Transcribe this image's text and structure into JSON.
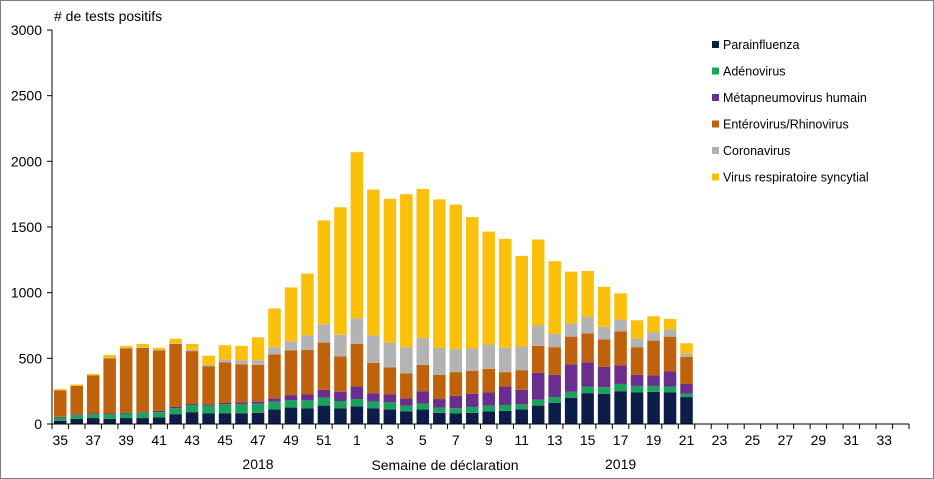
{
  "chart_data": {
    "type": "bar",
    "stacked": true,
    "ylabel": "# de tests positifs",
    "xlabel": "Semaine de déclaration",
    "ylim": [
      0,
      3000
    ],
    "yticks": [
      0,
      500,
      1000,
      1500,
      2000,
      2500,
      3000
    ],
    "year_labels": [
      {
        "label": "2018",
        "under_category": "47"
      },
      {
        "label": "2019",
        "under_category": "17"
      }
    ],
    "categories": [
      "35",
      "36",
      "37",
      "38",
      "39",
      "40",
      "41",
      "42",
      "43",
      "44",
      "45",
      "46",
      "47",
      "48",
      "49",
      "50",
      "51",
      "52",
      "1",
      "2",
      "3",
      "4",
      "5",
      "6",
      "7",
      "8",
      "9",
      "10",
      "11",
      "12",
      "13",
      "14",
      "15",
      "16",
      "17",
      "18",
      "19",
      "20",
      "21",
      "22",
      "23",
      "24",
      "25",
      "26",
      "27",
      "28",
      "29",
      "30",
      "31",
      "32",
      "33",
      "34"
    ],
    "tick_labels": [
      "35",
      "37",
      "39",
      "41",
      "43",
      "45",
      "47",
      "49",
      "51",
      "1",
      "3",
      "5",
      "7",
      "9",
      "11",
      "13",
      "15",
      "17",
      "19",
      "21",
      "23",
      "25",
      "27",
      "29",
      "31",
      "33"
    ],
    "legend_position": "top-right",
    "grid": false,
    "series": [
      {
        "name": "Parainfluenza",
        "color": "#0d1d4a",
        "values": [
          25,
          40,
          45,
          40,
          45,
          45,
          50,
          75,
          90,
          80,
          80,
          80,
          85,
          110,
          125,
          120,
          140,
          120,
          135,
          120,
          110,
          95,
          110,
          85,
          80,
          85,
          95,
          100,
          110,
          140,
          160,
          200,
          235,
          230,
          250,
          240,
          245,
          240,
          205,
          0,
          0,
          0,
          0,
          0,
          0,
          0,
          0,
          0,
          0,
          0,
          0,
          0
        ]
      },
      {
        "name": "Adénovirus",
        "color": "#1aa35b",
        "values": [
          25,
          30,
          30,
          35,
          35,
          40,
          40,
          45,
          55,
          60,
          70,
          70,
          70,
          60,
          55,
          60,
          60,
          55,
          55,
          50,
          55,
          45,
          45,
          40,
          40,
          45,
          45,
          45,
          40,
          45,
          45,
          45,
          50,
          50,
          55,
          50,
          45,
          45,
          25,
          0,
          0,
          0,
          0,
          0,
          0,
          0,
          0,
          0,
          0,
          0,
          0,
          0
        ]
      },
      {
        "name": "Métapneumovirus humain",
        "color": "#6a2e8f",
        "values": [
          5,
          5,
          5,
          5,
          5,
          5,
          10,
          10,
          10,
          10,
          10,
          15,
          15,
          25,
          40,
          45,
          60,
          70,
          95,
          65,
          60,
          55,
          95,
          65,
          95,
          100,
          100,
          140,
          110,
          205,
          170,
          210,
          185,
          155,
          140,
          85,
          80,
          115,
          75,
          0,
          0,
          0,
          0,
          0,
          0,
          0,
          0,
          0,
          0,
          0,
          0,
          0
        ]
      },
      {
        "name": "Entérovirus/Rhinovirus",
        "color": "#c0620c",
        "values": [
          200,
          215,
          290,
          420,
          490,
          490,
          460,
          480,
          400,
          290,
          310,
          290,
          280,
          335,
          340,
          340,
          360,
          270,
          325,
          230,
          205,
          190,
          200,
          185,
          180,
          175,
          180,
          110,
          150,
          205,
          210,
          210,
          220,
          210,
          260,
          210,
          265,
          265,
          205,
          0,
          0,
          0,
          0,
          0,
          0,
          0,
          0,
          0,
          0,
          0,
          0,
          0
        ]
      },
      {
        "name": "Coronavirus",
        "color": "#b3b3b3",
        "values": [
          0,
          0,
          0,
          5,
          5,
          5,
          5,
          5,
          10,
          10,
          20,
          30,
          35,
          55,
          70,
          110,
          140,
          165,
          195,
          210,
          190,
          200,
          205,
          205,
          175,
          170,
          185,
          185,
          180,
          155,
          100,
          100,
          125,
          95,
          90,
          65,
          65,
          55,
          25,
          0,
          0,
          0,
          0,
          0,
          0,
          0,
          0,
          0,
          0,
          0,
          0,
          0
        ]
      },
      {
        "name": "Virus respiratoire syncytial",
        "color": "#fbc10a",
        "values": [
          10,
          10,
          10,
          20,
          15,
          25,
          15,
          35,
          45,
          70,
          110,
          110,
          175,
          295,
          410,
          470,
          790,
          970,
          1265,
          1110,
          1095,
          1165,
          1135,
          1130,
          1100,
          1000,
          860,
          830,
          690,
          655,
          555,
          395,
          350,
          305,
          200,
          140,
          120,
          80,
          80,
          0,
          0,
          0,
          0,
          0,
          0,
          0,
          0,
          0,
          0,
          0,
          0,
          0
        ]
      }
    ]
  }
}
